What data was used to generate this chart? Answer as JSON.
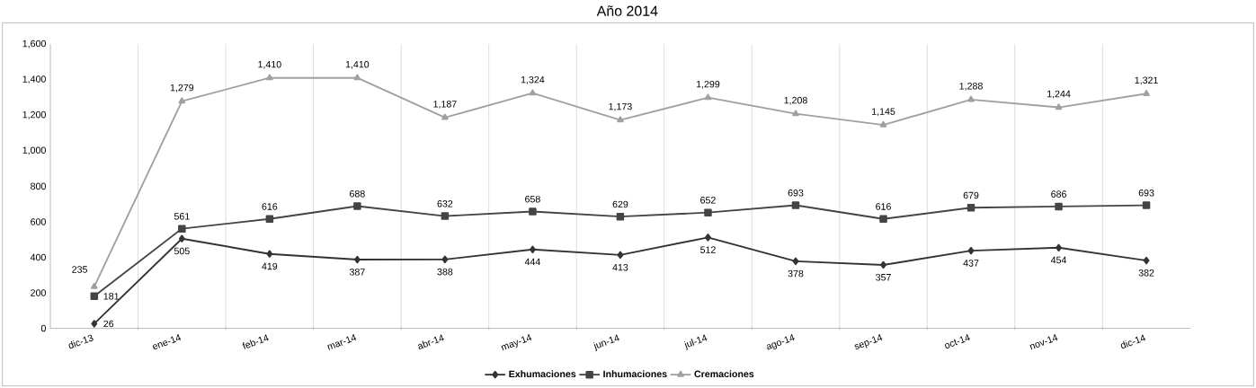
{
  "chart_data": {
    "type": "line",
    "title": "Año 2014",
    "categories": [
      "dic-13",
      "ene-14",
      "feb-14",
      "mar-14",
      "abr-14",
      "may-14",
      "jun-14",
      "jul-14",
      "ago-14",
      "sep-14",
      "oct-14",
      "nov-14",
      "dic-14"
    ],
    "series": [
      {
        "name": "Exhumaciones",
        "color": "#333333",
        "marker": "diamond",
        "values": [
          26,
          505,
          419,
          387,
          388,
          444,
          413,
          512,
          378,
          357,
          437,
          454,
          382
        ],
        "value_labels": [
          "26",
          "505",
          "419",
          "387",
          "388",
          "444",
          "413",
          "512",
          "378",
          "357",
          "437",
          "454",
          "382"
        ]
      },
      {
        "name": "Inhumaciones",
        "color": "#444444",
        "marker": "square",
        "values": [
          181,
          561,
          616,
          688,
          632,
          658,
          629,
          652,
          693,
          616,
          679,
          686,
          693
        ],
        "value_labels": [
          "181",
          "561",
          "616",
          "688",
          "632",
          "658",
          "629",
          "652",
          "693",
          "616",
          "679",
          "686",
          "693"
        ]
      },
      {
        "name": "Cremaciones",
        "color": "#a0a0a0",
        "marker": "triangle",
        "values": [
          235,
          1279,
          1410,
          1410,
          1187,
          1324,
          1173,
          1299,
          1208,
          1145,
          1288,
          1244,
          1321
        ],
        "value_labels": [
          "235",
          "1,279",
          "1,410",
          "1,410",
          "1,187",
          "1,324",
          "1,173",
          "1,299",
          "1,208",
          "1,145",
          "1,288",
          "1,244",
          "1,321"
        ]
      }
    ],
    "ylim": [
      0,
      1600
    ],
    "yticks": [
      0,
      200,
      400,
      600,
      800,
      {
        "value": 1000,
        "label": "1,000"
      },
      {
        "value": 1200,
        "label": "1,200"
      },
      {
        "value": 1400,
        "label": "1,400"
      },
      {
        "value": 1600,
        "label": "1,600"
      }
    ],
    "grid": "x",
    "legend": "bottom",
    "line_style": "solid"
  }
}
